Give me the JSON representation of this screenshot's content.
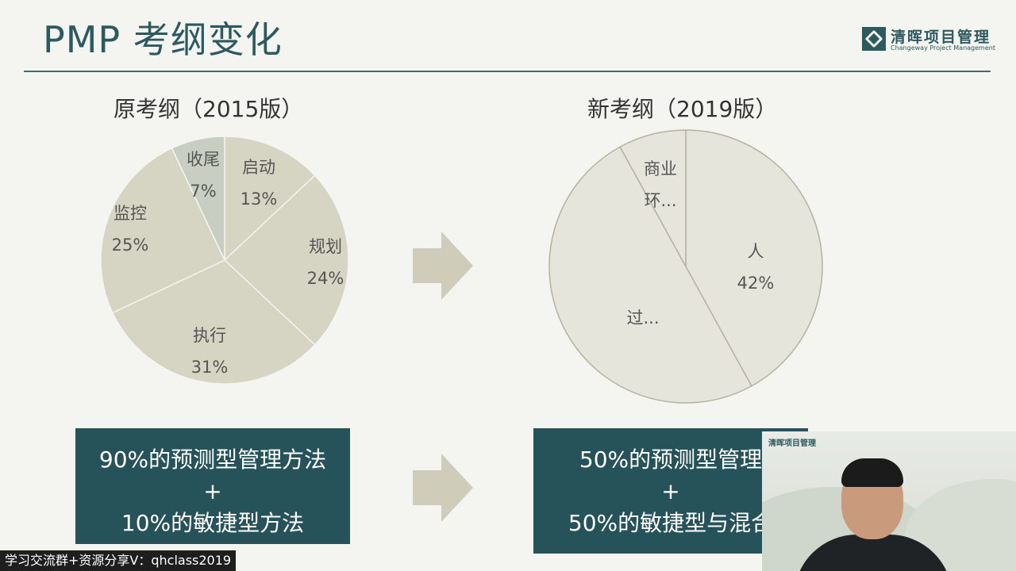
{
  "slide": {
    "title": "PMP 考纲变化",
    "logo": {
      "cn": "清晖项目管理",
      "en": "Changeway Project Management"
    }
  },
  "colors": {
    "accent": "#2d5a5f",
    "box": "#255359",
    "pie_old": "#d6d4c3",
    "pie_new": "#e6e5dc",
    "arrow": "#cfcdb9"
  },
  "charts": {
    "old": {
      "title": "原考纲（2015版）"
    },
    "new": {
      "title": "新考纲（2019版）"
    }
  },
  "chart_data": [
    {
      "type": "pie",
      "title": "原考纲（2015版）",
      "slices": [
        {
          "name": "启动",
          "value": 13,
          "pct_label": "13%"
        },
        {
          "name": "规划",
          "value": 24,
          "pct_label": "24%"
        },
        {
          "name": "执行",
          "value": 31,
          "pct_label": "31%"
        },
        {
          "name": "监控",
          "value": 25,
          "pct_label": "25%"
        },
        {
          "name": "收尾",
          "value": 7,
          "pct_label": "7%"
        }
      ]
    },
    {
      "type": "pie",
      "title": "新考纲（2019版）",
      "slices": [
        {
          "name": "人",
          "value": 42,
          "pct_label": "42%"
        },
        {
          "name": "过...",
          "value": 50,
          "pct_label": ""
        },
        {
          "name": "商业环...",
          "value": 8,
          "pct_label": ""
        }
      ],
      "label_lines": {
        "商业环...": [
          "商业",
          "环..."
        ]
      }
    }
  ],
  "boxes": {
    "left": {
      "line1": "90%的预测型管理方法",
      "line2": "+",
      "line3": "10%的敏捷型方法"
    },
    "right": {
      "line1": "50%的预测型管理",
      "line2": "+",
      "line3": "50%的敏捷型与混合"
    }
  },
  "video": {
    "logo": "清晖项目管理"
  },
  "watermark": "学习交流群+资源分享V：qhclass2019"
}
